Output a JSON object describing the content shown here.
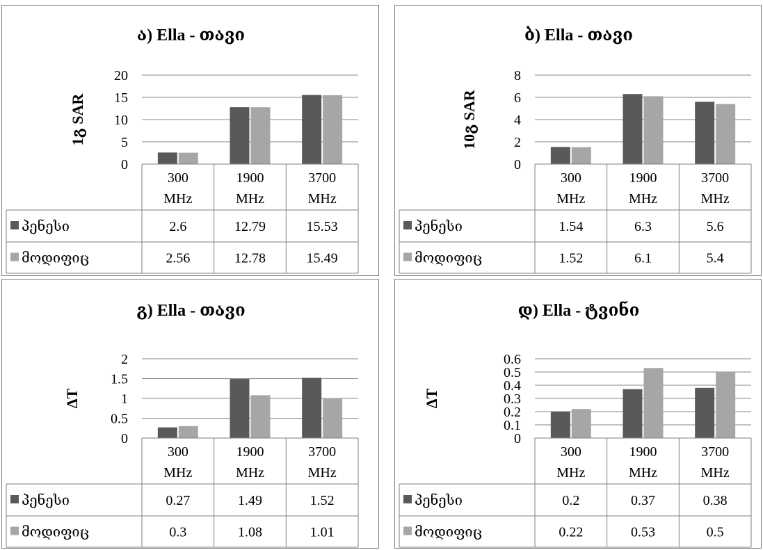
{
  "colors": {
    "series1": "#595959",
    "series2": "#a6a6a6",
    "grid": "#868686",
    "border": "#7f7f7f"
  },
  "chart_data": [
    {
      "type": "bar",
      "title": "ა) Ella - თავი",
      "ylabel": "1გ  SAR",
      "xlabel": "",
      "categories": [
        [
          "300",
          "MHz"
        ],
        [
          "1900",
          "MHz"
        ],
        [
          "3700",
          "MHz"
        ]
      ],
      "ylim": [
        0,
        20
      ],
      "yticks": [
        "20",
        "15",
        "10",
        "5",
        "0"
      ],
      "ytick_values": [
        20,
        15,
        10,
        5,
        0
      ],
      "grid": true,
      "legend": "data-table",
      "series": [
        {
          "name": "პენესი",
          "values": [
            2.6,
            12.79,
            15.53
          ],
          "labels": [
            "2.6",
            "12.79",
            "15.53"
          ]
        },
        {
          "name": "მოდიფიც",
          "values": [
            2.56,
            12.78,
            15.49
          ],
          "labels": [
            "2.56",
            "12.78",
            "15.49"
          ]
        }
      ]
    },
    {
      "type": "bar",
      "title": "ბ) Ella  - თავი",
      "ylabel": "10გ  SAR",
      "xlabel": "",
      "categories": [
        [
          "300",
          "MHz"
        ],
        [
          "1900",
          "MHz"
        ],
        [
          "3700",
          "MHz"
        ]
      ],
      "ylim": [
        0,
        8
      ],
      "yticks": [
        "8",
        "6",
        "4",
        "2",
        "0"
      ],
      "ytick_values": [
        8,
        6,
        4,
        2,
        0
      ],
      "grid": true,
      "legend": "data-table",
      "series": [
        {
          "name": "პენესი",
          "values": [
            1.54,
            6.3,
            5.6
          ],
          "labels": [
            "1.54",
            "6.3",
            "5.6"
          ]
        },
        {
          "name": "მოდიფიც",
          "values": [
            1.52,
            6.1,
            5.4
          ],
          "labels": [
            "1.52",
            "6.1",
            "5.4"
          ]
        }
      ]
    },
    {
      "type": "bar",
      "title": "გ) Ella -  თავი",
      "ylabel": "ΔT",
      "xlabel": "",
      "categories": [
        [
          "300",
          "MHz"
        ],
        [
          "1900",
          "MHz"
        ],
        [
          "3700",
          "MHz"
        ]
      ],
      "ylim": [
        0,
        2
      ],
      "yticks": [
        "2",
        "1.5",
        "1",
        "0.5",
        "0"
      ],
      "ytick_values": [
        2,
        1.5,
        1,
        0.5,
        0
      ],
      "grid": true,
      "legend": "data-table",
      "series": [
        {
          "name": "პენესი",
          "values": [
            0.27,
            1.49,
            1.52
          ],
          "labels": [
            "0.27",
            "1.49",
            "1.52"
          ]
        },
        {
          "name": "მოდიფიც",
          "values": [
            0.3,
            1.08,
            1.01
          ],
          "labels": [
            "0.3",
            "1.08",
            "1.01"
          ]
        }
      ]
    },
    {
      "type": "bar",
      "title": "დ) Ella  - ტვინი",
      "ylabel": "ΔT",
      "xlabel": "",
      "categories": [
        [
          "300",
          "MHz"
        ],
        [
          "1900",
          "MHz"
        ],
        [
          "3700",
          "MHz"
        ]
      ],
      "ylim": [
        0,
        0.6
      ],
      "yticks": [
        "0.6",
        "0.5",
        "0.4",
        "0.3",
        "0.2",
        "0.1",
        "0"
      ],
      "ytick_values": [
        0.6,
        0.5,
        0.4,
        0.3,
        0.2,
        0.1,
        0
      ],
      "grid": true,
      "legend": "data-table",
      "series": [
        {
          "name": "პენესი",
          "values": [
            0.2,
            0.37,
            0.38
          ],
          "labels": [
            "0.2",
            "0.37",
            "0.38"
          ]
        },
        {
          "name": "მოდიფიც",
          "values": [
            0.22,
            0.53,
            0.5
          ],
          "labels": [
            "0.22",
            "0.53",
            "0.5"
          ]
        }
      ]
    }
  ]
}
